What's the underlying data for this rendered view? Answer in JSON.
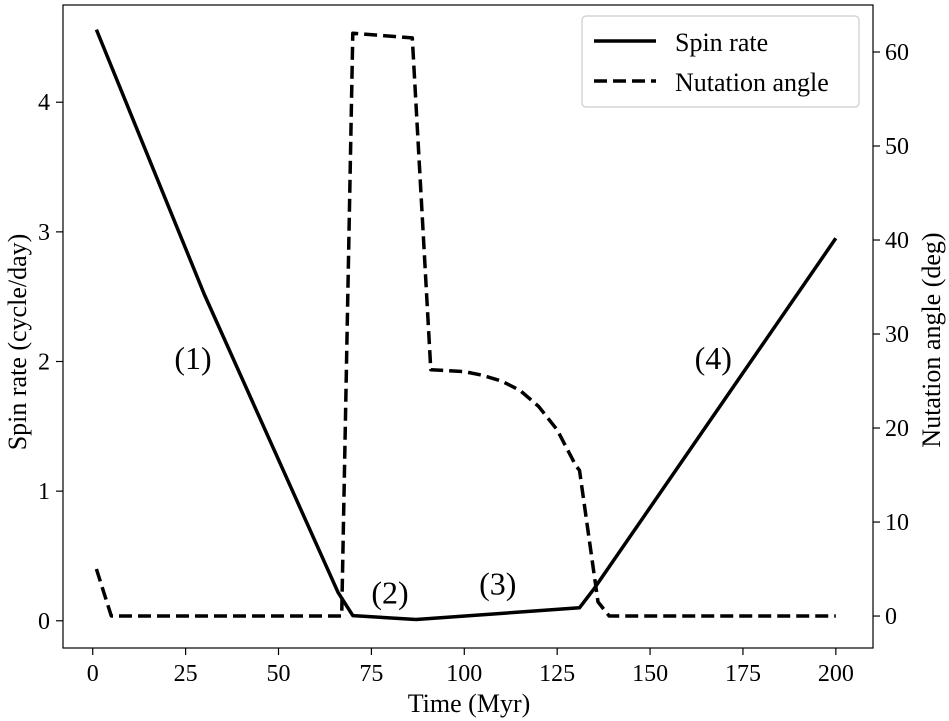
{
  "chart_data": {
    "type": "line",
    "title": "",
    "xlabel": "Time (Myr)",
    "ylabel": "Spin rate (cycle/day)",
    "y2label": "Nutation angle (deg)",
    "xlim": [
      -8,
      210
    ],
    "ylim": [
      -0.21,
      4.75
    ],
    "y2lim": [
      -3.4,
      65
    ],
    "xticks": [
      0,
      25,
      50,
      75,
      100,
      125,
      150,
      175,
      200
    ],
    "yticks": [
      0,
      1,
      2,
      3,
      4
    ],
    "y2ticks": [
      0,
      10,
      20,
      30,
      40,
      50,
      60
    ],
    "grid": false,
    "legend_position": "top-right",
    "series": [
      {
        "name": "Spin rate",
        "axis": "left",
        "style": "solid",
        "color": "#000000",
        "x": [
          1,
          30,
          66,
          70,
          87,
          131,
          135,
          200
        ],
        "y": [
          4.56,
          2.52,
          0.22,
          0.04,
          0.01,
          0.1,
          0.25,
          2.95
        ]
      },
      {
        "name": "Nutation angle",
        "axis": "right",
        "style": "dashed",
        "color": "#000000",
        "x": [
          1,
          5,
          67,
          70,
          86,
          91,
          100,
          105,
          110,
          115,
          120,
          125,
          130,
          131,
          136,
          139,
          200
        ],
        "y": [
          5,
          0,
          0,
          62,
          61.5,
          26.2,
          26,
          25.6,
          25,
          24,
          22.3,
          19.8,
          16,
          15.5,
          1.5,
          0,
          0
        ]
      }
    ],
    "annotations": [
      {
        "text": "(1)",
        "x": 27,
        "y": 2.0
      },
      {
        "text": "(2)",
        "x": 80,
        "y": 0.19
      },
      {
        "text": "(3)",
        "x": 109,
        "y": 0.26
      },
      {
        "text": "(4)",
        "x": 167,
        "y": 2.0
      }
    ]
  }
}
